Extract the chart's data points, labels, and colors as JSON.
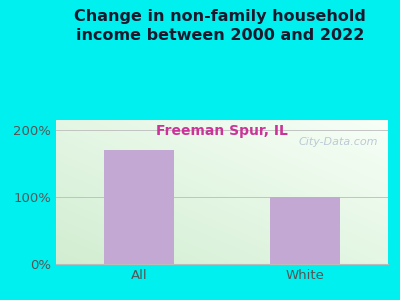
{
  "title": "Change in non-family household\nincome between 2000 and 2022",
  "subtitle": "Freeman Spur, IL",
  "categories": [
    "All",
    "White"
  ],
  "values": [
    170,
    100
  ],
  "bar_color": "#c4a8d4",
  "background_color": "#00efef",
  "title_color": "#1a1a2e",
  "subtitle_color": "#cc3399",
  "tick_label_color": "#555555",
  "yticks": [
    0,
    100,
    200
  ],
  "ytick_labels": [
    "0%",
    "100%",
    "200%"
  ],
  "ylim": [
    0,
    215
  ],
  "watermark": "City-Data.com",
  "title_fontsize": 11.5,
  "subtitle_fontsize": 10,
  "tick_fontsize": 9.5
}
